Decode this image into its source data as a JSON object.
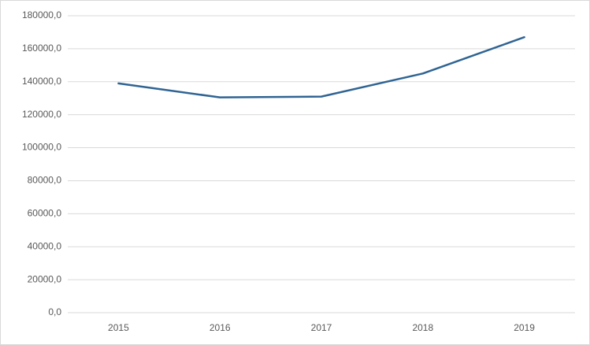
{
  "chart_data": {
    "type": "line",
    "categories": [
      "2015",
      "2016",
      "2017",
      "2018",
      "2019"
    ],
    "series": [
      {
        "name": "Series 1",
        "color": "#2f6493",
        "values": [
          139000,
          130500,
          131000,
          145000,
          167000
        ]
      }
    ],
    "ylim": [
      0,
      180000
    ],
    "yticks": [
      {
        "value": 0,
        "label": "0,0"
      },
      {
        "value": 20000,
        "label": "20000,0"
      },
      {
        "value": 40000,
        "label": "40000,0"
      },
      {
        "value": 60000,
        "label": "60000,0"
      },
      {
        "value": 80000,
        "label": "80000,0"
      },
      {
        "value": 100000,
        "label": "100000,0"
      },
      {
        "value": 120000,
        "label": "120000,0"
      },
      {
        "value": 140000,
        "label": "140000,0"
      },
      {
        "value": 160000,
        "label": "160000,0"
      },
      {
        "value": 180000,
        "label": "180000,0"
      }
    ],
    "grid": true
  }
}
